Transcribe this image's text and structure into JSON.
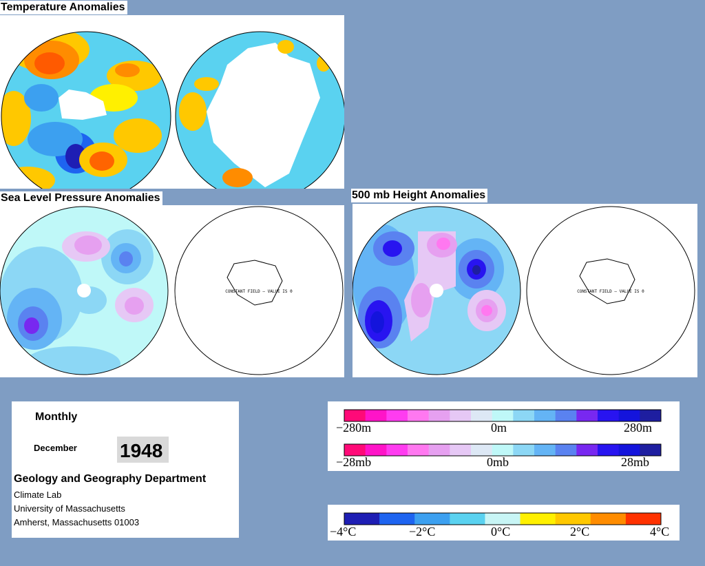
{
  "titles": {
    "temperature": "Temperature Anomalies",
    "slp": "Sea Level Pressure Anomalies",
    "height500": "500 mb Height Anomalies"
  },
  "map_note": "CONSTANT FIELD – VALUE IS 0",
  "info": {
    "period": "Monthly",
    "month": "December",
    "year": "1948",
    "department": "Geology and Geography Department",
    "lab": "Climate Lab",
    "university": "University of Massachusetts",
    "address": "Amherst, Massachusetts 01003"
  },
  "legends": {
    "height": {
      "labels": [
        "−280m",
        "0m",
        "280m"
      ]
    },
    "pressure": {
      "labels": [
        "−28mb",
        "0mb",
        "28mb"
      ]
    },
    "temperature": {
      "labels": [
        "−4°C",
        "−2°C",
        "0°C",
        "2°C",
        "4°C"
      ]
    }
  },
  "colors": {
    "background": "#7f9dc3",
    "anomaly_negative_pressure": [
      "#ff0a78",
      "#ff14c8",
      "#ff3cf0",
      "#ff78f0",
      "#e6a0f0",
      "#e6c8f5",
      "#dde8f5"
    ],
    "anomaly_positive_pressure": [
      "#bff8f8",
      "#8cd7f5",
      "#64b4f5",
      "#5a82f0",
      "#7828f0",
      "#2814f0",
      "#1414dc",
      "#1e1ea0"
    ],
    "temperature_scale": [
      "#1e1eb4",
      "#1e64f0",
      "#3ca0f0",
      "#5ad2f0",
      "#c8f5f5",
      "#fff000",
      "#ffc800",
      "#ff8c00",
      "#ff3200"
    ]
  }
}
